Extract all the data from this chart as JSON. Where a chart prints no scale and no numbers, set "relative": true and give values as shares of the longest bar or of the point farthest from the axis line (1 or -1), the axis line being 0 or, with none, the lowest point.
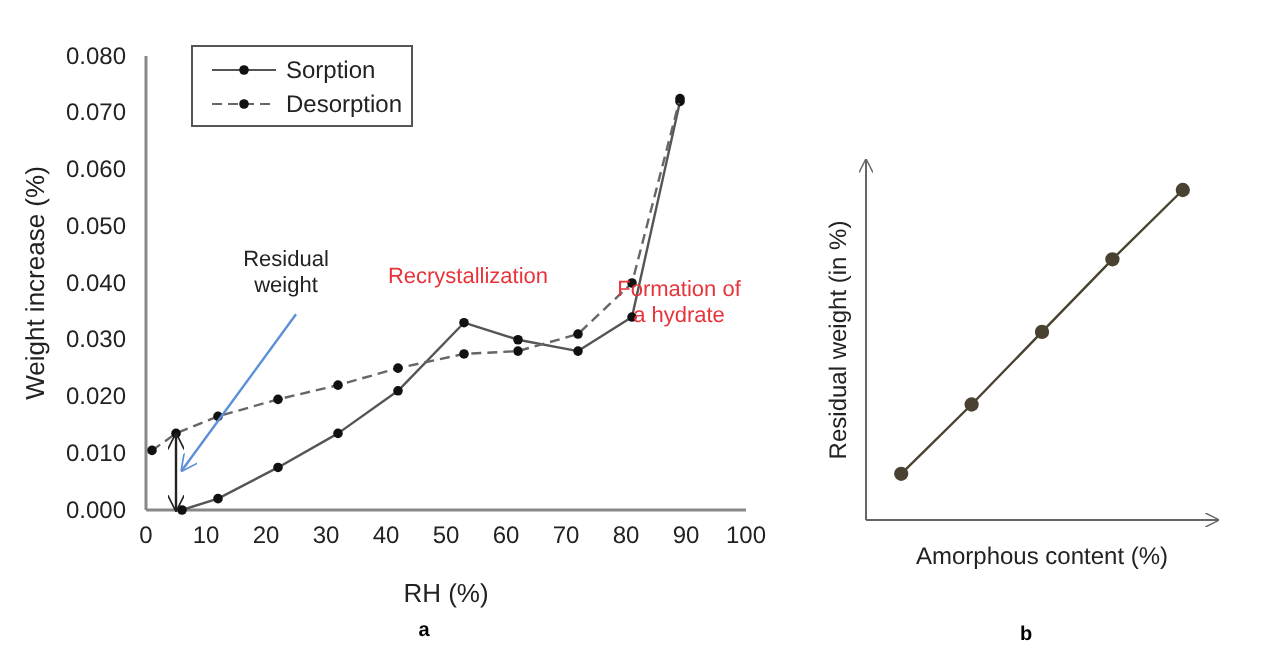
{
  "chart_data": [
    {
      "type": "line",
      "title": "a",
      "xlabel": "RH (%)",
      "ylabel": "Weight increase (%)",
      "xlim": [
        0,
        100
      ],
      "xticks": [
        0,
        10,
        20,
        30,
        40,
        50,
        60,
        70,
        80,
        90,
        100
      ],
      "ylim": [
        0,
        0.08
      ],
      "yticks": [
        {
          "value": 0,
          "label": "0.000"
        },
        {
          "value": 0.01,
          "label": "0.010"
        },
        {
          "value": 0.02,
          "label": "0.020"
        },
        {
          "value": 0.03,
          "label": "0.030"
        },
        {
          "value": 0.04,
          "label": "0.040"
        },
        {
          "value": 0.05,
          "label": "0.050"
        },
        {
          "value": 0.06,
          "label": "0.060"
        },
        {
          "value": 0.07,
          "label": "0.070"
        },
        {
          "value": 0.08,
          "label": "0.080"
        }
      ],
      "grid": false,
      "legend": "top left",
      "marker": "circle",
      "series": [
        {
          "name": "Sorption",
          "color": "#555555",
          "line_style": "solid",
          "x": [
            6,
            12,
            22,
            32,
            42,
            53,
            62,
            72,
            81,
            89
          ],
          "values": [
            0.0,
            0.002,
            0.0075,
            0.0135,
            0.021,
            0.033,
            0.03,
            0.028,
            0.034,
            0.072
          ]
        },
        {
          "name": "Desorption",
          "color": "#666666",
          "line_style": "dashed",
          "x": [
            1,
            5,
            12,
            22,
            32,
            42,
            53,
            62,
            72,
            81,
            89
          ],
          "values": [
            0.0105,
            0.0135,
            0.0165,
            0.0195,
            0.022,
            0.025,
            0.0275,
            0.028,
            0.031,
            0.04,
            0.0725
          ]
        }
      ],
      "annotations": [
        "Residual weight",
        "Recrystallization",
        "Formation of a hydrate"
      ]
    },
    {
      "type": "line",
      "title": "b",
      "xlabel": "Amorphous content (%)",
      "ylabel": "Residual weight (in %)",
      "relative": true,
      "categories": [
        null,
        null,
        null,
        null,
        null
      ],
      "marker": "circle",
      "series": [
        {
          "color": "#4a4230",
          "values": [
            0.14,
            0.35,
            0.57,
            0.79,
            1.0
          ]
        }
      ]
    }
  ]
}
